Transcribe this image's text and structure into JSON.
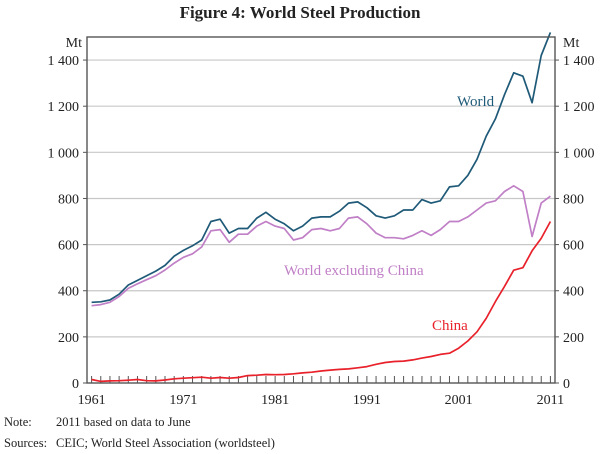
{
  "chart_data": {
    "type": "line",
    "title": "Figure 4: World Steel Production",
    "ylabel_left": "Mt",
    "ylabel_right": "Mt",
    "xlabel": "",
    "ylim": [
      0,
      1500
    ],
    "xlim": [
      1960.5,
      2011.5
    ],
    "y_ticks": [
      0,
      200,
      400,
      600,
      800,
      1000,
      1200,
      1400
    ],
    "y_tick_labels": [
      "0",
      "200",
      "400",
      "600",
      "800",
      "1 000",
      "1 200",
      "1 400"
    ],
    "x_ticks": [
      1961,
      1971,
      1981,
      1991,
      2001,
      2011
    ],
    "x_tick_labels": [
      "1961",
      "1971",
      "1981",
      "1991",
      "2001",
      "2011"
    ],
    "grid": true,
    "x": [
      1961,
      1962,
      1963,
      1964,
      1965,
      1966,
      1967,
      1968,
      1969,
      1970,
      1971,
      1972,
      1973,
      1974,
      1975,
      1976,
      1977,
      1978,
      1979,
      1980,
      1981,
      1982,
      1983,
      1984,
      1985,
      1986,
      1987,
      1988,
      1989,
      1990,
      1991,
      1992,
      1993,
      1994,
      1995,
      1996,
      1997,
      1998,
      1999,
      2000,
      2001,
      2002,
      2003,
      2004,
      2005,
      2006,
      2007,
      2008,
      2009,
      2010,
      2011
    ],
    "series": [
      {
        "name": "World",
        "color": "#1f5a78",
        "values": [
          350,
          352,
          360,
          385,
          425,
          445,
          465,
          485,
          510,
          550,
          575,
          595,
          620,
          700,
          710,
          650,
          670,
          670,
          715,
          740,
          710,
          690,
          660,
          680,
          715,
          720,
          720,
          745,
          780,
          785,
          760,
          725,
          715,
          725,
          750,
          750,
          795,
          780,
          790,
          850,
          855,
          900,
          970,
          1070,
          1145,
          1250,
          1345,
          1330,
          1215,
          1420,
          1520
        ]
      },
      {
        "name": "World excluding China",
        "color": "#c07fc6",
        "values": [
          335,
          340,
          350,
          375,
          410,
          430,
          448,
          465,
          490,
          520,
          545,
          560,
          590,
          660,
          665,
          610,
          645,
          645,
          680,
          700,
          680,
          670,
          620,
          630,
          665,
          670,
          660,
          670,
          715,
          720,
          690,
          650,
          630,
          630,
          625,
          640,
          660,
          640,
          665,
          700,
          700,
          720,
          750,
          780,
          790,
          830,
          855,
          830,
          635,
          780,
          810
        ]
      },
      {
        "name": "China",
        "color": "#e8212b",
        "values": [
          15,
          7,
          9,
          10,
          12,
          15,
          10,
          9,
          13,
          18,
          21,
          23,
          25,
          21,
          24,
          21,
          24,
          32,
          34,
          37,
          36,
          37,
          40,
          44,
          47,
          52,
          56,
          59,
          61,
          66,
          71,
          81,
          89,
          93,
          95,
          100,
          108,
          115,
          124,
          129,
          151,
          182,
          222,
          280,
          353,
          419,
          489,
          500,
          573,
          627,
          700
        ]
      }
    ],
    "annotations": [
      {
        "text": "World",
        "series": "World"
      },
      {
        "text": "World excluding China",
        "series": "World excluding China"
      },
      {
        "text": "China",
        "series": "China"
      }
    ]
  },
  "footnotes": [
    {
      "key": "Note:",
      "text": "2011 based on data to June"
    },
    {
      "key": "Sources:",
      "text": "CEIC; World Steel Association (worldsteel)"
    }
  ]
}
